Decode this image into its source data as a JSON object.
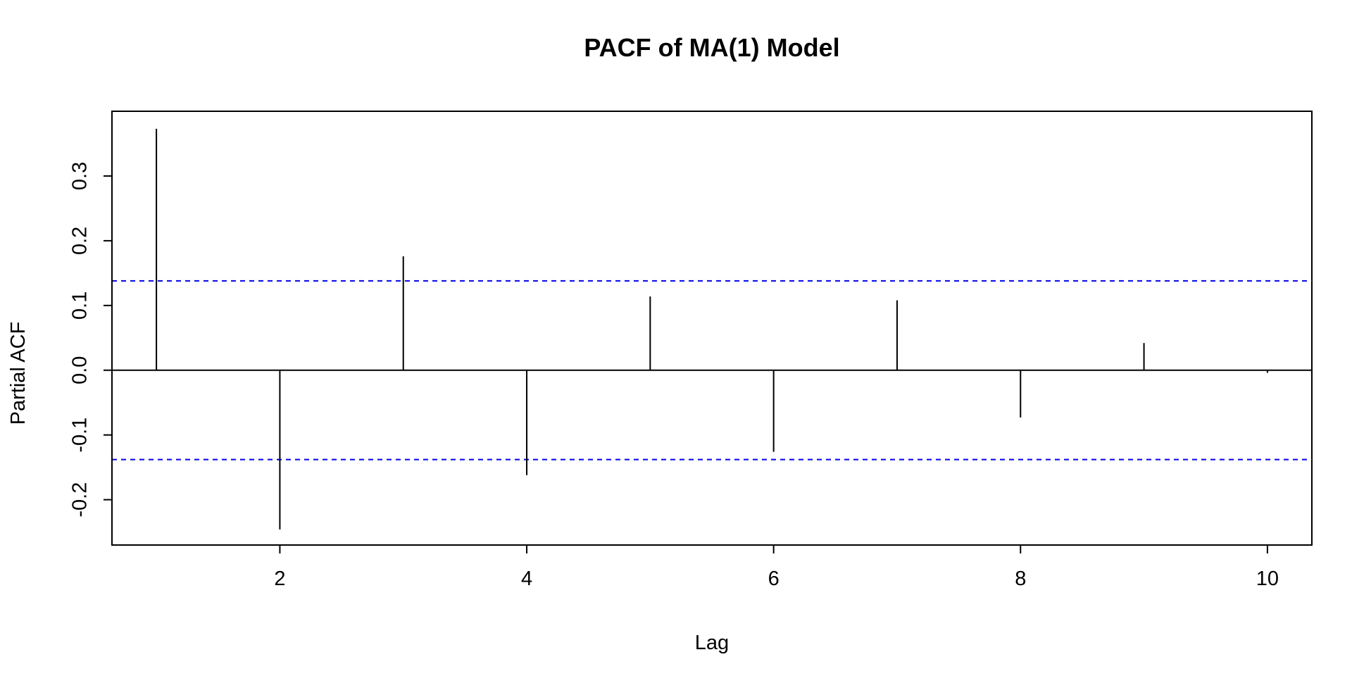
{
  "chart_data": {
    "type": "bar",
    "title": "PACF of MA(1) Model",
    "xlabel": "Lag",
    "ylabel": "Partial ACF",
    "lags": [
      1,
      2,
      3,
      4,
      5,
      6,
      7,
      8,
      9,
      10
    ],
    "values": [
      0.373,
      -0.246,
      0.176,
      -0.162,
      0.114,
      -0.126,
      0.108,
      -0.073,
      0.042,
      -0.004
    ],
    "confidence_bound": 0.138,
    "xlim": [
      0.64,
      10.36
    ],
    "ylim": [
      -0.27,
      0.4
    ],
    "x_ticks": [
      2,
      4,
      6,
      8,
      10
    ],
    "y_ticks": [
      -0.2,
      -0.1,
      0.0,
      0.1,
      0.2,
      0.3
    ],
    "y_tick_labels": [
      "-0.2",
      "-0.1",
      "0.0",
      "0.1",
      "0.2",
      "0.3"
    ],
    "grid": false,
    "colors": {
      "bars": "#000000",
      "confidence_lines": "#0000ee",
      "zero_line": "#000000"
    }
  }
}
